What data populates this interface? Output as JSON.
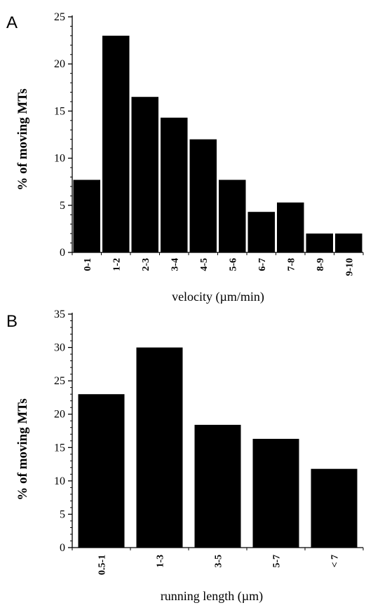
{
  "chart_data": [
    {
      "type": "bar",
      "panel": "A",
      "categories": [
        "0-1",
        "1-2",
        "2-3",
        "3-4",
        "4-5",
        "5-6",
        "6-7",
        "7-8",
        "8-9",
        "9-10"
      ],
      "values": [
        7.7,
        23.0,
        16.5,
        14.3,
        12.0,
        7.7,
        4.3,
        5.3,
        2.0,
        2.0
      ],
      "title": "",
      "xlabel": "velocity (µm/min)",
      "ylabel": "% of moving MTs",
      "ylim": [
        0,
        25
      ],
      "yticks": [
        0,
        5,
        10,
        15,
        20,
        25
      ],
      "grid": false,
      "bar_color": "#000000"
    },
    {
      "type": "bar",
      "panel": "B",
      "categories": [
        "0.5-1",
        "1-3",
        "3-5",
        "5-7",
        "< 7"
      ],
      "values": [
        23.0,
        30.0,
        18.4,
        16.3,
        11.8
      ],
      "title": "",
      "xlabel": "running length (µm)",
      "ylabel": "% of moving MTs",
      "ylim": [
        0,
        35
      ],
      "yticks": [
        0,
        5,
        10,
        15,
        20,
        25,
        30,
        35
      ],
      "grid": false,
      "bar_color": "#000000"
    }
  ]
}
